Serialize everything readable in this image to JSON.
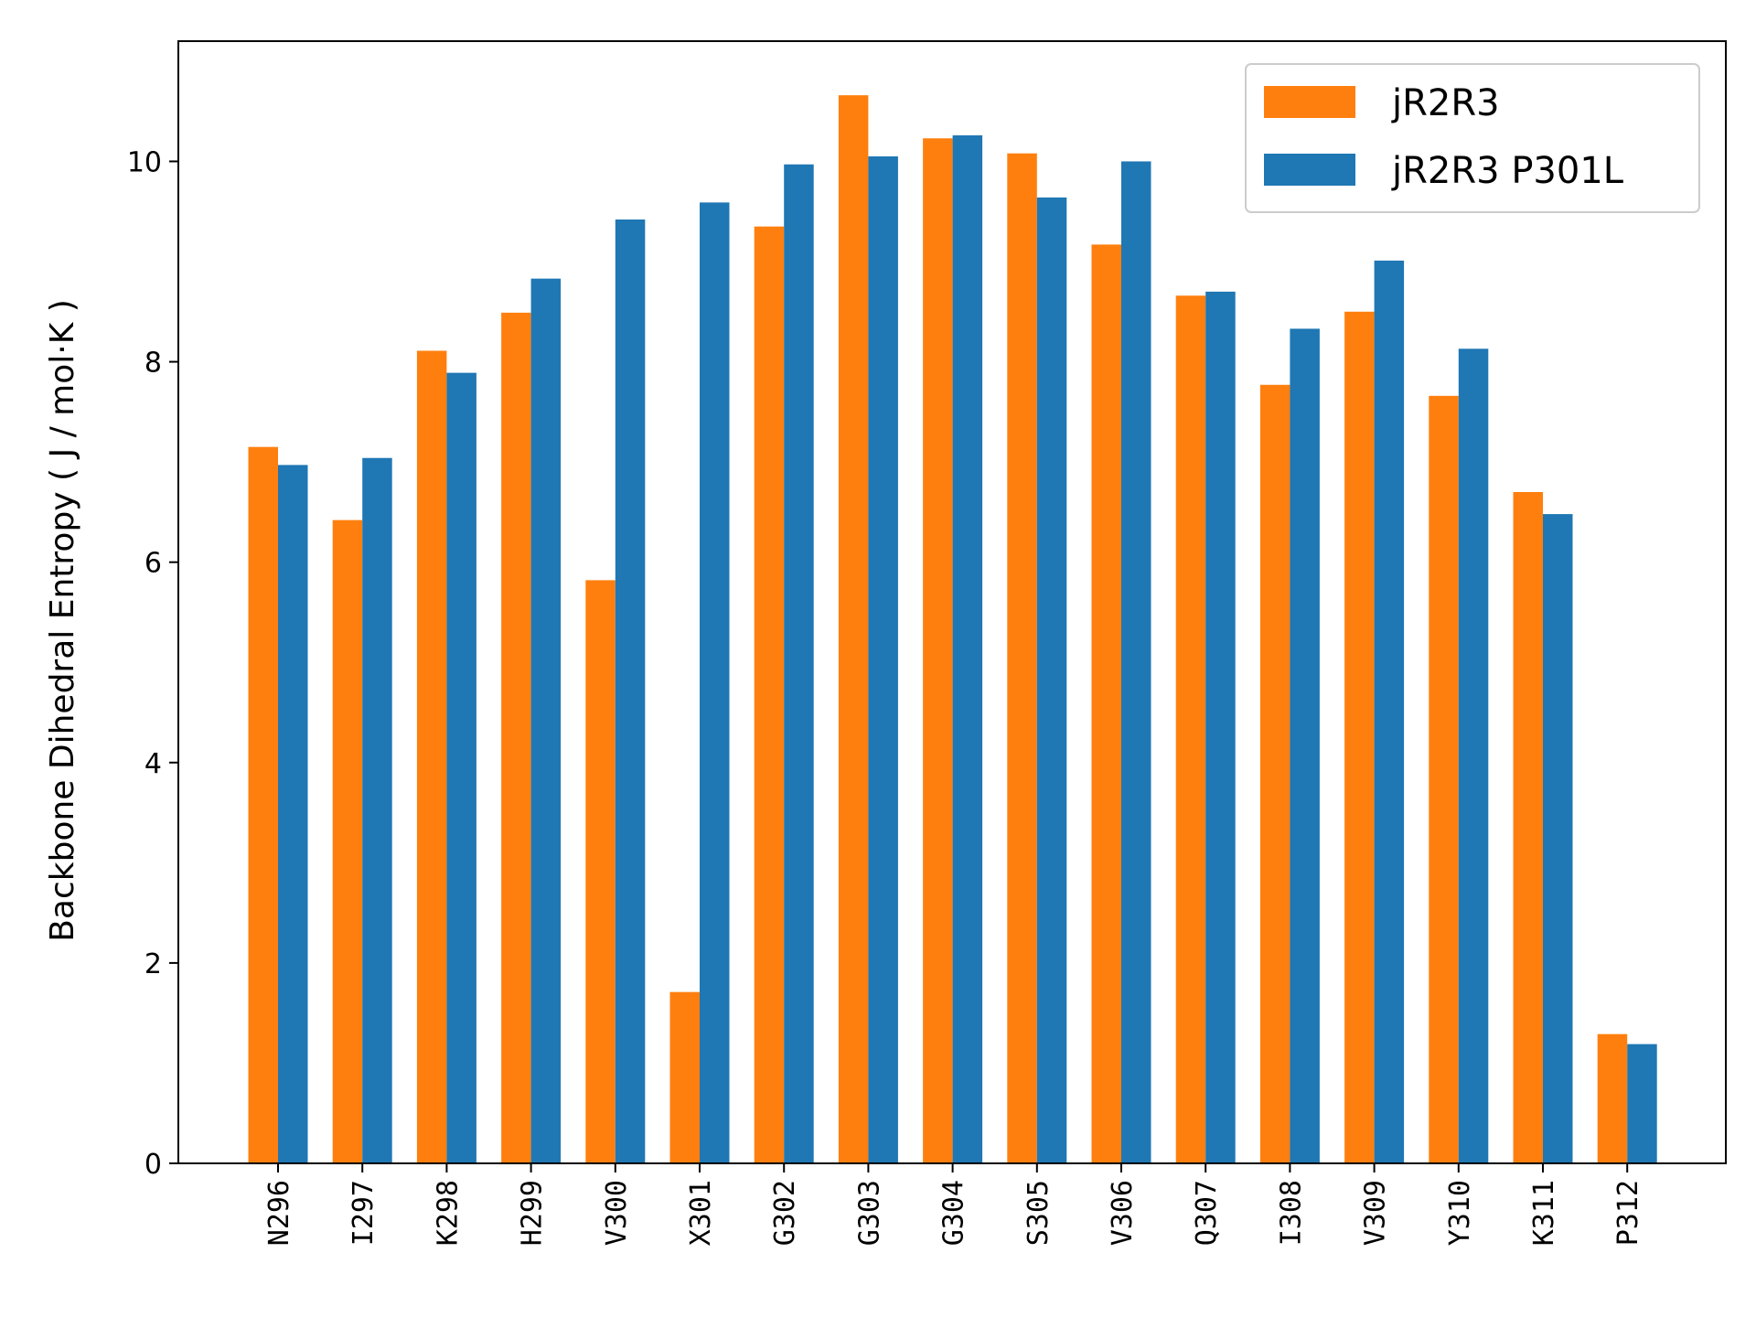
{
  "chart_data": {
    "type": "bar",
    "title": "",
    "xlabel": "",
    "ylabel": "Backbone Dihedral Entropy ( J / mol·K )",
    "categories": [
      "N296",
      "I297",
      "K298",
      "H299",
      "V300",
      "X301",
      "G302",
      "G303",
      "G304",
      "S305",
      "V306",
      "Q307",
      "I308",
      "V309",
      "Y310",
      "K311",
      "P312"
    ],
    "series": [
      {
        "name": "jR2R3",
        "color": "#ff7f0e",
        "values": [
          7.15,
          6.42,
          8.11,
          8.49,
          5.82,
          1.71,
          9.35,
          10.66,
          10.23,
          10.08,
          9.17,
          8.66,
          7.77,
          8.5,
          7.66,
          6.7,
          1.29
        ]
      },
      {
        "name": "jR2R3 P301L",
        "color": "#1f77b4",
        "values": [
          6.97,
          7.04,
          7.89,
          8.83,
          9.42,
          9.59,
          9.97,
          10.05,
          10.26,
          9.64,
          10.0,
          8.7,
          8.33,
          9.01,
          8.13,
          6.48,
          1.19
        ]
      }
    ],
    "ylim": [
      0,
      11.2
    ],
    "yticks": [
      0,
      2,
      4,
      6,
      8,
      10
    ],
    "grid": false,
    "legend": "top-right"
  }
}
